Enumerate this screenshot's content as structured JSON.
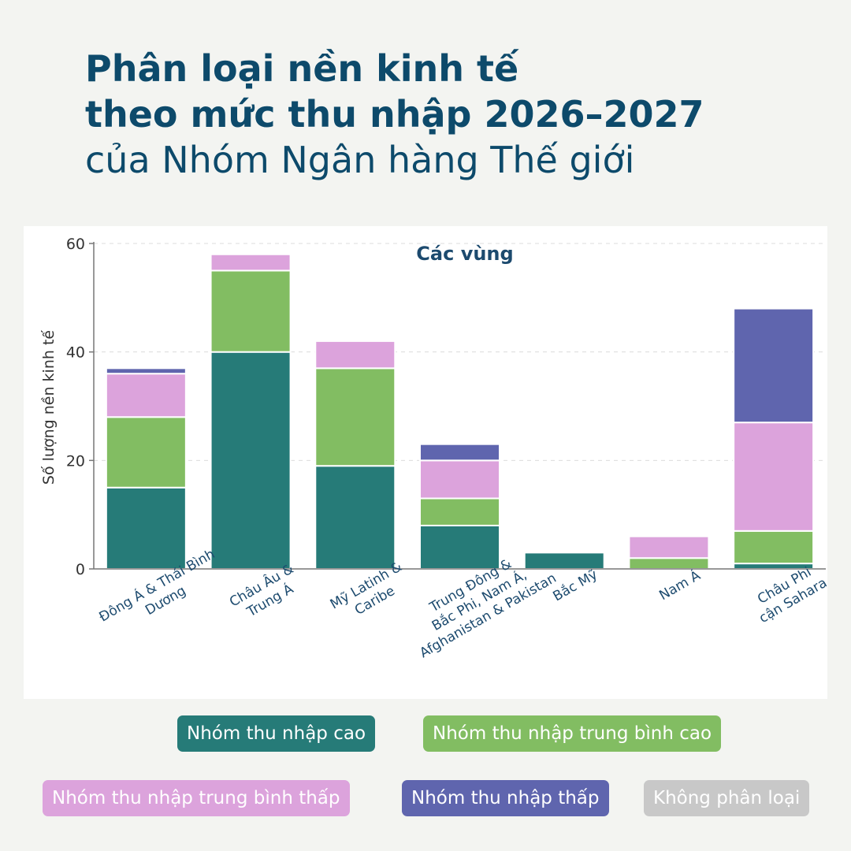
{
  "title": {
    "line1": "Phân loại nền kinh tế",
    "line2": "theo mức thu nhập 2026–2027",
    "line3": "của Nhóm Ngân hàng Thế giới"
  },
  "chart_data": {
    "type": "bar",
    "stacked": true,
    "title": "Các vùng",
    "ylabel": "Số lượng nền kinh tế",
    "xlabel": "",
    "ylim": [
      0,
      60
    ],
    "yticks": [
      0,
      20,
      40,
      60
    ],
    "grid": true,
    "legend_position": "bottom",
    "categories": [
      [
        "Đông Á & Thái Bình",
        "Dương"
      ],
      [
        "Châu Âu &",
        "Trung Á"
      ],
      [
        "Mỹ Latinh &",
        "Caribe"
      ],
      [
        "Trung Đông &",
        "Bắc Phi, Nam Á,",
        "Afghanistan & Pakistan"
      ],
      [
        "Bắc Mỹ"
      ],
      [
        "Nam Á"
      ],
      [
        "Châu Phi",
        "cận Sahara"
      ]
    ],
    "series": [
      {
        "name": "Nhóm thu nhập cao",
        "color": "#267b78",
        "text_color": "#ffffff",
        "values": [
          15,
          40,
          19,
          8,
          3,
          0,
          1
        ]
      },
      {
        "name": "Nhóm thu nhập trung bình cao",
        "color": "#82bd62",
        "text_color": "#ffffff",
        "values": [
          13,
          15,
          18,
          5,
          0,
          2,
          6
        ]
      },
      {
        "name": "Nhóm thu nhập trung bình thấp",
        "color": "#dca3dc",
        "text_color": "#ffffff",
        "values": [
          8,
          3,
          5,
          7,
          0,
          4,
          20
        ]
      },
      {
        "name": "Nhóm thu nhập thấp",
        "color": "#5f65ae",
        "text_color": "#ffffff",
        "values": [
          1,
          0,
          0,
          3,
          0,
          0,
          21
        ]
      },
      {
        "name": "Không phân loại",
        "color": "#c8c8c8",
        "text_color": "#ffffff",
        "values": [
          0,
          0,
          0,
          0,
          0,
          0,
          0
        ]
      }
    ]
  }
}
